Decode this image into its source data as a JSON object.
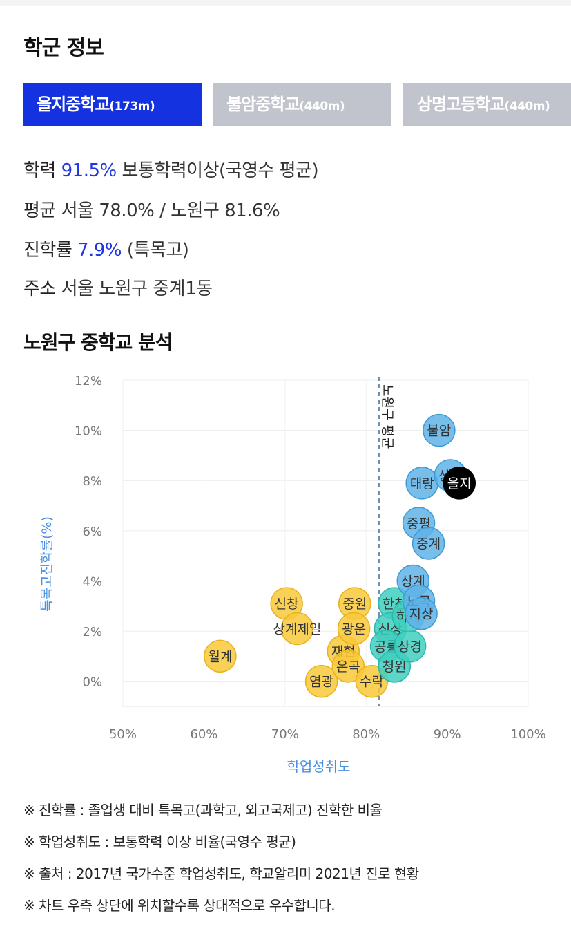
{
  "section1": {
    "title": "학군 정보"
  },
  "tabs": [
    {
      "name": "을지중학교",
      "dist": "(173m)",
      "active": true
    },
    {
      "name": "불암중학교",
      "dist": "(440m)",
      "active": false
    },
    {
      "name": "상명고등학교",
      "dist": "(440m)",
      "active": false
    }
  ],
  "info": {
    "achievement": {
      "label": "학력",
      "value": "91.5%",
      "desc": "보통학력이상(국영수 평균)"
    },
    "average": {
      "label": "평균",
      "desc": "서울 78.0% / 노원구 81.6%"
    },
    "advance": {
      "label": "진학률",
      "value": "7.9%",
      "desc": "(특목고)"
    },
    "address": {
      "label": "주소",
      "desc": "서울 노원구 중계1동"
    }
  },
  "section2": {
    "title": "노원구 중학교 분석"
  },
  "colors": {
    "accent": "#1532e0",
    "tab_inactive": "#c1c4cd",
    "yellow": "#f9c93a",
    "blue": "#5fb3e8",
    "teal": "#3fcfc0",
    "highlight": "#000000",
    "axis_label": "#4a90e2"
  },
  "chart_data": {
    "type": "scatter",
    "xlabel": "학업성취도",
    "ylabel": "특목고진학률(%)",
    "xlim": [
      50,
      100
    ],
    "ylim": [
      -1,
      12
    ],
    "xticks": [
      "50%",
      "60%",
      "70%",
      "80%",
      "90%",
      "100%"
    ],
    "yticks": [
      "0%",
      "2%",
      "4%",
      "6%",
      "8%",
      "10%",
      "12%"
    ],
    "reference_line": {
      "x": 81.6,
      "label": "노원구 평균"
    },
    "points": [
      {
        "label": "월계",
        "x": 62,
        "y": 1.0,
        "group": "yellow"
      },
      {
        "label": "신창",
        "x": 70.2,
        "y": 3.1,
        "group": "yellow"
      },
      {
        "label": "상계제일",
        "x": 71.5,
        "y": 2.1,
        "group": "yellow"
      },
      {
        "label": "염광",
        "x": 74.5,
        "y": 0.0,
        "group": "yellow"
      },
      {
        "label": "재현",
        "x": 77.2,
        "y": 1.2,
        "group": "yellow"
      },
      {
        "label": "중원",
        "x": 78.6,
        "y": 3.1,
        "group": "yellow"
      },
      {
        "label": "광운",
        "x": 78.5,
        "y": 2.1,
        "group": "yellow"
      },
      {
        "label": "온곡",
        "x": 77.8,
        "y": 0.6,
        "group": "yellow"
      },
      {
        "label": "수락",
        "x": 80.7,
        "y": 0.0,
        "group": "yellow"
      },
      {
        "label": "한천",
        "x": 83.5,
        "y": 3.1,
        "group": "teal"
      },
      {
        "label": "신상",
        "x": 83,
        "y": 2.1,
        "group": "teal"
      },
      {
        "label": "공릉",
        "x": 82.5,
        "y": 1.4,
        "group": "teal"
      },
      {
        "label": "청원",
        "x": 83.5,
        "y": 0.6,
        "group": "teal"
      },
      {
        "label": "상경",
        "x": 85.4,
        "y": 1.4,
        "group": "teal"
      },
      {
        "label": "하계",
        "x": 85.2,
        "y": 2.6,
        "group": "teal"
      },
      {
        "label": "상계",
        "x": 85.8,
        "y": 4.0,
        "group": "blue"
      },
      {
        "label": "노곡",
        "x": 86.5,
        "y": 3.2,
        "group": "blue"
      },
      {
        "label": "지상",
        "x": 86.8,
        "y": 2.7,
        "group": "blue"
      },
      {
        "label": "중평",
        "x": 86.5,
        "y": 6.3,
        "group": "blue"
      },
      {
        "label": "중계",
        "x": 87.7,
        "y": 5.5,
        "group": "blue"
      },
      {
        "label": "태랑",
        "x": 86.9,
        "y": 7.9,
        "group": "blue"
      },
      {
        "label": "상명",
        "x": 90.4,
        "y": 8.2,
        "group": "blue"
      },
      {
        "label": "불암",
        "x": 89,
        "y": 10.0,
        "group": "blue"
      },
      {
        "label": "을지",
        "x": 91.5,
        "y": 7.9,
        "group": "highlight"
      }
    ]
  },
  "notes": [
    "※ 진학률 : 졸업생 대비 특목고(과학고, 외고국제고) 진학한 비율",
    "※ 학업성취도 : 보통학력 이상 비율(국영수 평균)",
    "※ 출처 : 2017년 국가수준 학업성취도, 학교알리미 2021년 진로 현황",
    "※ 차트 우측 상단에 위치할수록 상대적으로 우수합니다."
  ]
}
